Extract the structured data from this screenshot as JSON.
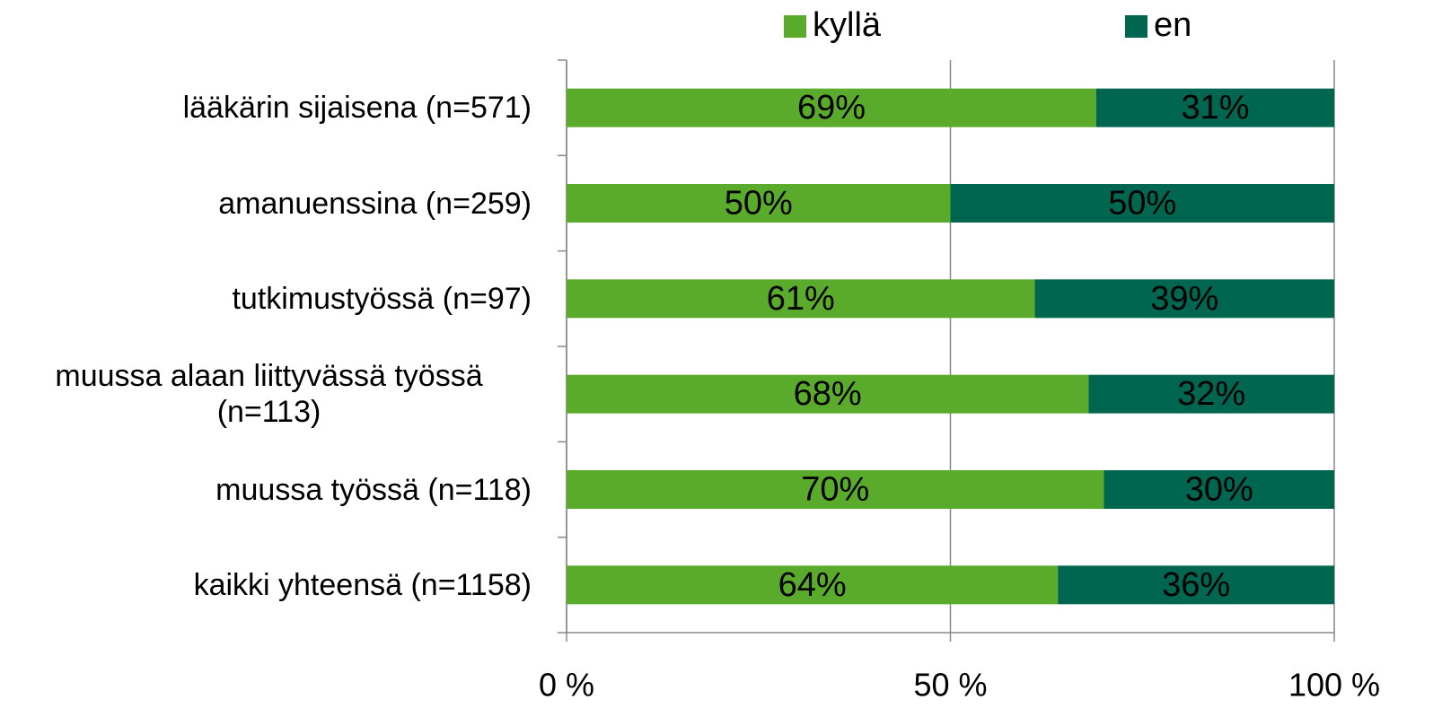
{
  "chart_data": {
    "type": "stacked-bar-horizontal",
    "categories": [
      "lääkärin sijaisena (n=571)",
      "amanuenssina (n=259)",
      "tutkimustyössä (n=97)",
      "muussa alaan liittyvässä työssä (n=113)",
      "muussa työssä (n=118)",
      "kaikki yhteensä (n=1158)"
    ],
    "series": [
      {
        "name": "kyllä",
        "color": "#5aab2b",
        "values": [
          69,
          50,
          61,
          68,
          70,
          64
        ],
        "value_labels": [
          "69%",
          "50%",
          "61%",
          "68%",
          "70%",
          "64%"
        ]
      },
      {
        "name": "en",
        "color": "#006650",
        "values": [
          31,
          50,
          39,
          32,
          30,
          36
        ],
        "value_labels": [
          "31%",
          "50%",
          "39%",
          "32%",
          "30%",
          "36%"
        ]
      }
    ],
    "xlim": [
      0,
      100
    ],
    "xticks": [
      {
        "value": 0,
        "label": "0 %"
      },
      {
        "value": 50,
        "label": "50 %"
      },
      {
        "value": 100,
        "label": "100 %"
      }
    ],
    "grid": true,
    "legend": "top"
  }
}
